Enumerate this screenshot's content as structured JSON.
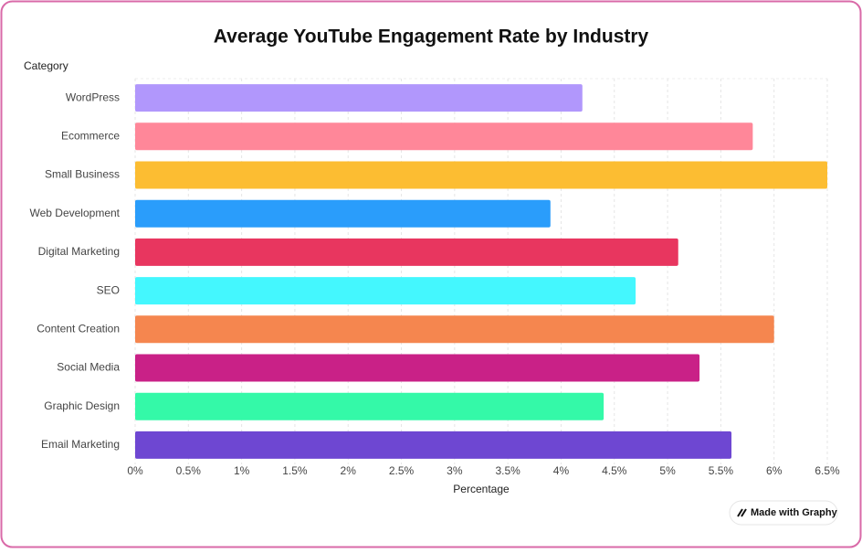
{
  "chart_data": {
    "type": "bar",
    "orientation": "horizontal",
    "title": "Average YouTube Engagement Rate by Industry",
    "y_label": "Category",
    "x_label": "Percentage",
    "categories": [
      "WordPress",
      "Ecommerce",
      "Small Business",
      "Web Development",
      "Digital Marketing",
      "SEO",
      "Content Creation",
      "Social Media",
      "Graphic Design",
      "Email Marketing"
    ],
    "values": [
      4.2,
      5.8,
      6.5,
      3.9,
      5.1,
      4.7,
      6.0,
      5.3,
      4.4,
      5.6
    ],
    "colors": [
      "#b197fc",
      "#ff8799",
      "#fcbd32",
      "#2a9dfb",
      "#e8365f",
      "#44f7fe",
      "#f5864f",
      "#c92187",
      "#34f9a8",
      "#6e47d2"
    ],
    "xlim": [
      0,
      6.5
    ],
    "xticks": [
      {
        "value": 0,
        "label": "0%"
      },
      {
        "value": 0.5,
        "label": "0.5%"
      },
      {
        "value": 1,
        "label": "1%"
      },
      {
        "value": 1.5,
        "label": "1.5%"
      },
      {
        "value": 2,
        "label": "2%"
      },
      {
        "value": 2.5,
        "label": "2.5%"
      },
      {
        "value": 3,
        "label": "3%"
      },
      {
        "value": 3.5,
        "label": "3.5%"
      },
      {
        "value": 4,
        "label": "4%"
      },
      {
        "value": 4.5,
        "label": "4.5%"
      },
      {
        "value": 5,
        "label": "5%"
      },
      {
        "value": 5.5,
        "label": "5.5%"
      },
      {
        "value": 6,
        "label": "6%"
      },
      {
        "value": 6.5,
        "label": "6.5%"
      }
    ],
    "grid": true
  },
  "badge": "Made with Graphy"
}
